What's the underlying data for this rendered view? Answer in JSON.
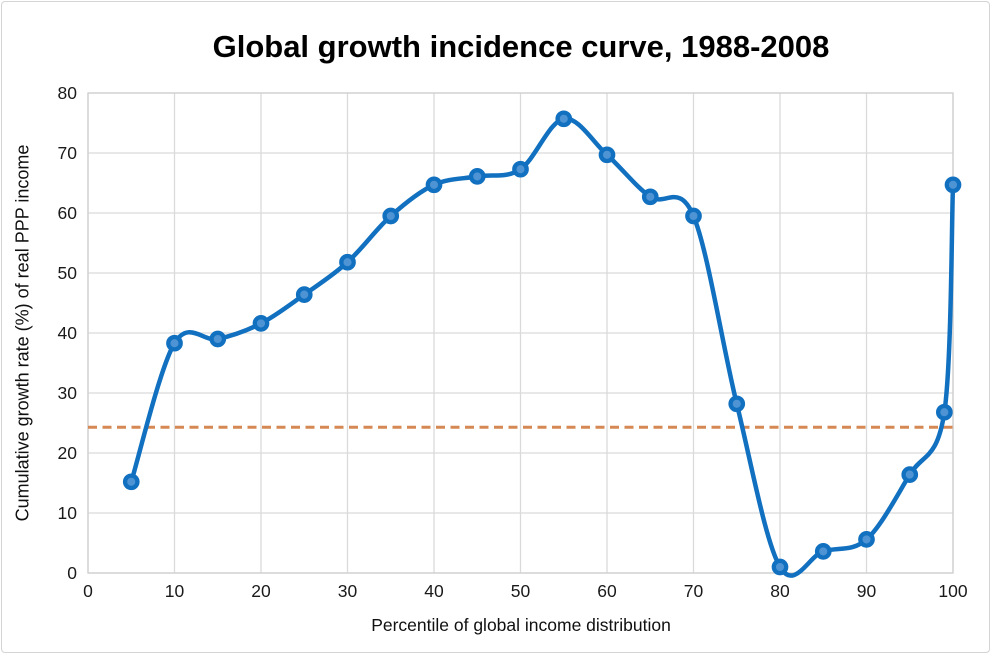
{
  "window": {
    "background": "#ffffff",
    "frame_border_color": "#d4d4d4"
  },
  "chart_data": {
    "type": "line",
    "title": "Global growth incidence curve, 1988-2008",
    "xlabel": "Percentile of global income distribution",
    "ylabel": "Cumulative growth rate (%) of real PPP income",
    "xlim": [
      0,
      100
    ],
    "ylim": [
      0,
      80
    ],
    "xticks": [
      0,
      10,
      20,
      30,
      40,
      50,
      60,
      70,
      80,
      90,
      100
    ],
    "yticks": [
      0,
      10,
      20,
      30,
      40,
      50,
      60,
      70,
      80
    ],
    "grid": true,
    "legend": false,
    "series": [
      {
        "name": "Cumulative growth rate of real PPP income",
        "smooth": true,
        "line_color": "#1170BF",
        "line_width": 4.5,
        "marker": "circle",
        "marker_fill": "#4E94D4",
        "marker_ring_color": "#1170BF",
        "points": [
          [
            5,
            15.2
          ],
          [
            10,
            38.3
          ],
          [
            15,
            39.0
          ],
          [
            20,
            41.6
          ],
          [
            25,
            46.4
          ],
          [
            30,
            51.8
          ],
          [
            35,
            59.5
          ],
          [
            40,
            64.7
          ],
          [
            45,
            66.1
          ],
          [
            50,
            67.3
          ],
          [
            55,
            75.7
          ],
          [
            60,
            69.7
          ],
          [
            65,
            62.7
          ],
          [
            70,
            59.5
          ],
          [
            75,
            28.2
          ],
          [
            80,
            1.0
          ],
          [
            85,
            3.6
          ],
          [
            90,
            5.6
          ],
          [
            95,
            16.4
          ],
          [
            99,
            26.8
          ],
          [
            100,
            64.7
          ]
        ]
      }
    ],
    "reference_line": {
      "value": 24.3,
      "style": "dashed",
      "color": "#D58853",
      "width": 3
    },
    "colors": {
      "grid": "#DADADA",
      "plot_border": "#CFCFCF",
      "tick_text": "#1a1a1a"
    }
  }
}
